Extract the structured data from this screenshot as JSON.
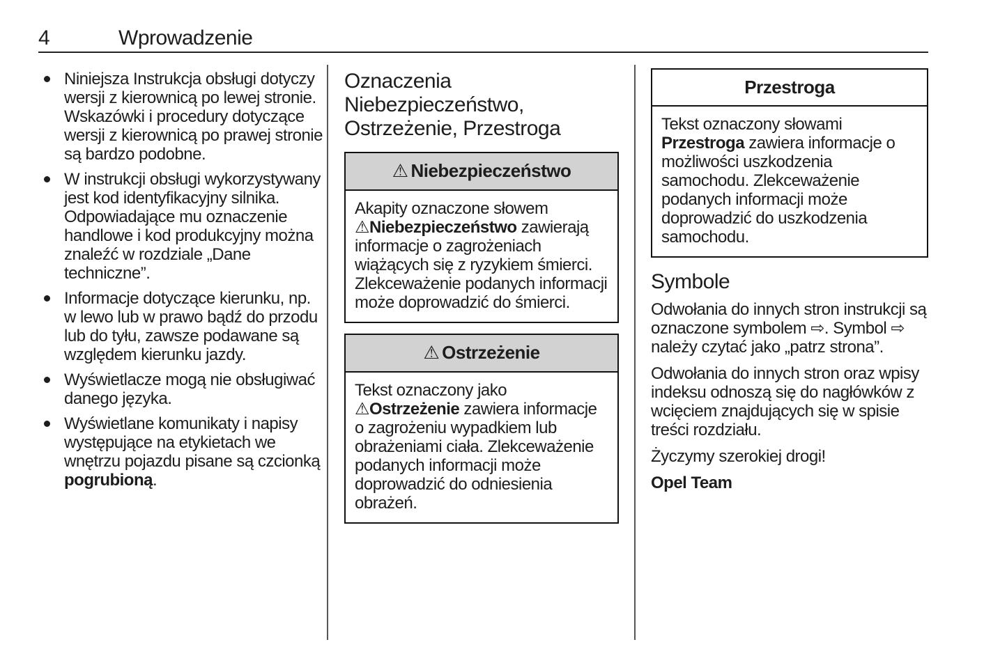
{
  "page_header": {
    "page_number": "4",
    "chapter_title": "Wprowadzenie"
  },
  "intro_column": {
    "bullets": [
      {
        "segments": [
          {
            "t": "Niniejsza Instrukcja obsługi dotyczy wersji z kierownicą po lewej stronie. Wskazówki i procedury dotyczące wersji z kierownicą po prawej stronie są bardzo podobne."
          }
        ]
      },
      {
        "segments": [
          {
            "t": "W instrukcji obsługi wykorzystywany jest kod identyfikacyjny silnika. Odpowiadające mu oznaczenie handlowe i kod produkcyjny można znaleźć w rozdziale „Dane techniczne”."
          }
        ]
      },
      {
        "segments": [
          {
            "t": "Informacje dotyczące kierunku, np. w lewo lub w prawo bądź do przodu lub do tyłu, zawsze podawane są względem kierunku jazdy."
          }
        ]
      },
      {
        "segments": [
          {
            "t": "Wyświetlacze mogą nie obsługiwać danego języka."
          }
        ]
      },
      {
        "segments": [
          {
            "t": "Wyświetlane komunikaty i napisy występujące na etykietach we wnętrzu pojazdu pisane są czcionką "
          },
          {
            "t": "pogrubioną",
            "b": true
          },
          {
            "t": "."
          }
        ]
      }
    ]
  },
  "middle_column": {
    "heading_lines": [
      "Oznaczenia",
      "Niebezpieczeństwo,",
      "Ostrzeżenie, Przestroga"
    ],
    "danger_box": {
      "header_icon": "warning-triangle-icon",
      "header_label": "Niebezpieczeństwo",
      "body_segments": [
        {
          "t": "Akapity oznaczone słowem "
        },
        {
          "icon": "warning-triangle-icon"
        },
        {
          "t": "Niebezpieczeństwo",
          "b": true
        },
        {
          "t": " zawierają informacje o zagrożeniach wiążących się z ryzykiem śmierci. Zlekceważenie podanych informacji może doprowadzić do śmierci."
        }
      ]
    },
    "warning_box": {
      "header_icon": "warning-triangle-icon",
      "header_label": "Ostrzeżenie",
      "body_segments": [
        {
          "t": "Tekst oznaczony jako "
        },
        {
          "icon": "warning-triangle-icon"
        },
        {
          "t": "Ostrzeżenie",
          "b": true
        },
        {
          "t": " zawiera informacje o zagrożeniu wypadkiem lub obrażeniami ciała. Zlekceważenie podanych informacji może doprowadzić do odniesienia obrażeń."
        }
      ]
    }
  },
  "right_column": {
    "caution_box": {
      "header_label": "Przestroga",
      "body_segments": [
        {
          "t": "Tekst oznaczony słowami "
        },
        {
          "t": "Przestroga",
          "b": true
        },
        {
          "t": " zawiera informacje o możliwości uszkodzenia samochodu. Zlekceważenie podanych informacji może doprowadzić do uszkodzenia samochodu."
        }
      ]
    },
    "symbols_heading": "Symbole",
    "paragraphs": [
      {
        "segments": [
          {
            "t": "Odwołania do innych stron instrukcji są oznaczone symbolem "
          },
          {
            "icon": "page-reference-arrow-icon"
          },
          {
            "t": ". Symbol "
          },
          {
            "icon": "page-reference-arrow-icon"
          },
          {
            "t": " należy czytać jako „patrz strona”."
          }
        ]
      },
      {
        "segments": [
          {
            "t": "Odwołania do innych stron oraz wpisy indeksu odnoszą się do nagłówków z wcięciem znajdujących się w spisie treści rozdziału."
          }
        ]
      },
      {
        "segments": [
          {
            "t": "Życzymy szerokiej drogi!"
          }
        ]
      },
      {
        "segments": [
          {
            "t": "Opel Team",
            "b": true
          }
        ]
      }
    ]
  },
  "icons": {
    "warning-triangle-icon": "outlined triangle with exclamation mark",
    "page-reference-arrow-icon": "hollow rightwards arrow (patrz strona)",
    "bullet-icon": "filled round list bullet"
  },
  "colors": {
    "box_header_bg": "#d2d2d2",
    "border": "#111111",
    "divider": "#555555",
    "text": "#1d1d1d"
  }
}
